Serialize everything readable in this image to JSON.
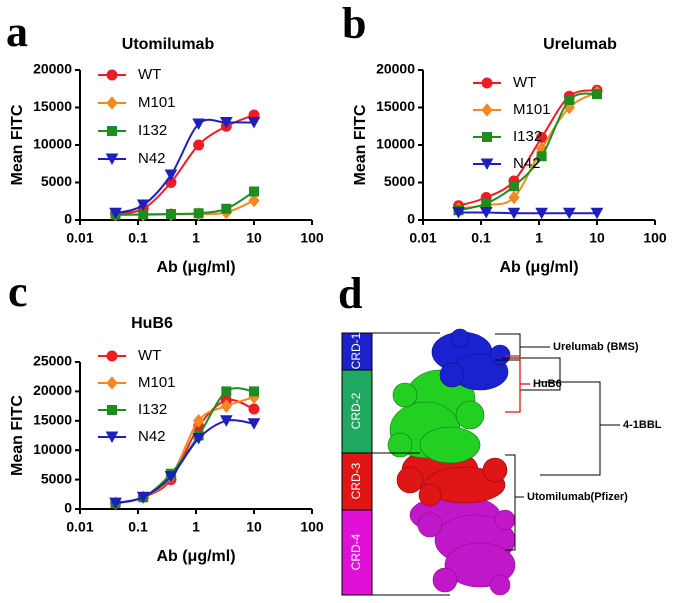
{
  "chart_data": [
    {
      "type": "line",
      "panel": "a",
      "title": "Utomilumab",
      "xlabel": "Ab (μg/ml)",
      "ylabel": "Mean FITC",
      "x": [
        0.041,
        0.123,
        0.37,
        1.11,
        3.33,
        10
      ],
      "xlog": true,
      "xlim": [
        0.01,
        100
      ],
      "xticks": [
        0.01,
        0.1,
        1,
        10,
        100
      ],
      "ylim": [
        0,
        20000
      ],
      "yticks": [
        0,
        5000,
        10000,
        15000,
        20000
      ],
      "series": [
        {
          "name": "WT",
          "color": "#ee1c25",
          "marker": "circle",
          "values": [
            900,
            1500,
            5000,
            10000,
            12500,
            14000
          ]
        },
        {
          "name": "M101",
          "color": "#f7881f",
          "marker": "diamond",
          "values": [
            700,
            700,
            750,
            800,
            1000,
            2600
          ]
        },
        {
          "name": "I132",
          "color": "#1e8c1e",
          "marker": "square",
          "values": [
            700,
            750,
            800,
            900,
            1500,
            3800
          ]
        },
        {
          "name": "N42",
          "color": "#1f1fbf",
          "marker": "triangle-down",
          "values": [
            900,
            2000,
            6000,
            12800,
            13000,
            13000
          ]
        }
      ]
    },
    {
      "type": "line",
      "panel": "b",
      "title": "Urelumab",
      "xlabel": "Ab (μg/ml)",
      "ylabel": "Mean FITC",
      "x": [
        0.041,
        0.123,
        0.37,
        1.11,
        3.33,
        10
      ],
      "xlog": true,
      "xlim": [
        0.01,
        100
      ],
      "xticks": [
        0.01,
        0.1,
        1,
        10,
        100
      ],
      "ylim": [
        0,
        20000
      ],
      "yticks": [
        0,
        5000,
        10000,
        15000,
        20000
      ],
      "series": [
        {
          "name": "WT",
          "color": "#ee1c25",
          "marker": "circle",
          "values": [
            1900,
            3000,
            5200,
            11000,
            16500,
            17300
          ]
        },
        {
          "name": "M101",
          "color": "#f7881f",
          "marker": "diamond",
          "values": [
            1500,
            2000,
            3000,
            9500,
            15000,
            17000
          ]
        },
        {
          "name": "I132",
          "color": "#1e8c1e",
          "marker": "square",
          "values": [
            1300,
            2200,
            4500,
            8500,
            16000,
            16800
          ]
        },
        {
          "name": "N42",
          "color": "#1f1fbf",
          "marker": "triangle-down",
          "values": [
            1000,
            1000,
            900,
            900,
            900,
            900
          ]
        }
      ]
    },
    {
      "type": "line",
      "panel": "c",
      "title": "HuB6",
      "xlabel": "Ab (μg/ml)",
      "ylabel": "Mean FITC",
      "x": [
        0.041,
        0.123,
        0.37,
        1.11,
        3.33,
        10
      ],
      "xlog": true,
      "xlim": [
        0.01,
        100
      ],
      "xticks": [
        0.01,
        0.1,
        1,
        10,
        100
      ],
      "ylim": [
        0,
        25000
      ],
      "yticks": [
        0,
        5000,
        10000,
        15000,
        20000,
        25000
      ],
      "series": [
        {
          "name": "WT",
          "color": "#ee1c25",
          "marker": "circle",
          "values": [
            1000,
            2000,
            5000,
            14000,
            18500,
            17000
          ]
        },
        {
          "name": "M101",
          "color": "#f7881f",
          "marker": "diamond",
          "values": [
            1000,
            2000,
            5500,
            15000,
            17500,
            19000
          ]
        },
        {
          "name": "I132",
          "color": "#1e8c1e",
          "marker": "square",
          "values": [
            1000,
            2000,
            6000,
            12500,
            20000,
            20000
          ]
        },
        {
          "name": "N42",
          "color": "#1f1fbf",
          "marker": "triangle-down",
          "values": [
            1000,
            2000,
            5500,
            12000,
            15000,
            14500
          ]
        }
      ]
    }
  ],
  "diagram": {
    "panel": "d",
    "domains": [
      "CRD-1",
      "CRD-2",
      "CRD-3",
      "CRD-4"
    ],
    "labels": {
      "urelumab": "Urelumab  (BMS)",
      "hub6": "HuB6",
      "ligand": "4-1BBL",
      "utomilumab": "Utomilumab(Pfizer)"
    }
  }
}
